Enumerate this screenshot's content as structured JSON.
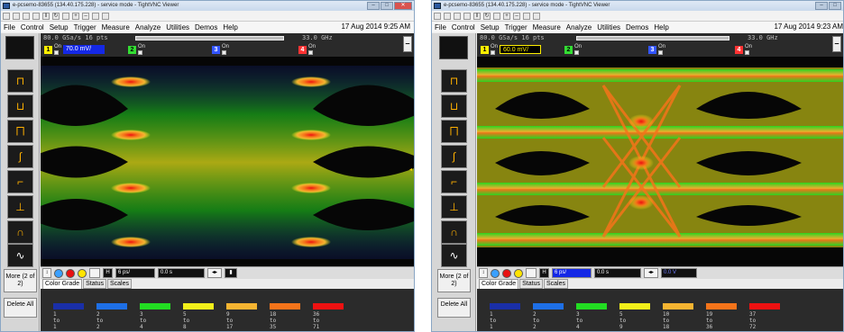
{
  "left": {
    "title_bar": "e-pcsemo-83655 (134.40.175.228) - service mode - TightVNC Viewer",
    "menu": [
      "File",
      "Control",
      "Setup",
      "Trigger",
      "Measure",
      "Analyze",
      "Utilities",
      "Demos",
      "Help"
    ],
    "date": "17 Aug 2014 9:25 AM",
    "sample_rate": "80.0 GSa/s   16 pts",
    "frequency": "33.0 GHz",
    "ch1": {
      "num": "1",
      "on": "On",
      "scale": "70.0 mV/"
    },
    "ch2": {
      "num": "2",
      "on": "On"
    },
    "ch3": {
      "num": "3",
      "on": "On"
    },
    "ch4": {
      "num": "4",
      "on": "On"
    },
    "more": "More (2 of 2)",
    "delete": "Delete All",
    "timebase": "6 ps/",
    "delay": "0.0 s",
    "tabs": [
      "Color Grade",
      "Status",
      "Scales"
    ],
    "legend": [
      {
        "top": "1",
        "bottom": "1",
        "color": "#1a2fa8"
      },
      {
        "top": "2",
        "bottom": "2",
        "color": "#1e6fe6"
      },
      {
        "top": "3",
        "bottom": "4",
        "color": "#22dd22"
      },
      {
        "top": "5",
        "bottom": "8",
        "color": "#f2ef1a"
      },
      {
        "top": "9",
        "bottom": "17",
        "color": "#f5b431"
      },
      {
        "top": "18",
        "bottom": "35",
        "color": "#f5741a"
      },
      {
        "top": "36",
        "bottom": "71",
        "color": "#ee1111"
      }
    ]
  },
  "right": {
    "title_bar": "e-pcsemo-83655 (134.40.175.228) - service mode - TightVNC Viewer",
    "menu": [
      "File",
      "Control",
      "Setup",
      "Trigger",
      "Measure",
      "Analyze",
      "Utilities",
      "Demos",
      "Help"
    ],
    "date": "17 Aug 2014 9:23 AM",
    "sample_rate": "80.0 GSa/s   16 pts",
    "frequency": "33.0 GHz",
    "ch1": {
      "num": "1",
      "on": "On",
      "scale": "60.0 mV/"
    },
    "ch2": {
      "num": "2",
      "on": "On"
    },
    "ch3": {
      "num": "3",
      "on": "On"
    },
    "ch4": {
      "num": "4",
      "on": "On"
    },
    "more": "More (2 of 2)",
    "delete": "Delete All",
    "timebase": "6 ps/",
    "delay": "0.0 s",
    "trigger_level": "0.0 V",
    "tabs": [
      "Color Grade",
      "Status",
      "Scales"
    ],
    "legend": [
      {
        "top": "1",
        "bottom": "1",
        "color": "#1a2fa8"
      },
      {
        "top": "2",
        "bottom": "2",
        "color": "#1e6fe6"
      },
      {
        "top": "3",
        "bottom": "4",
        "color": "#22dd22"
      },
      {
        "top": "5",
        "bottom": "9",
        "color": "#f2ef1a"
      },
      {
        "top": "10",
        "bottom": "18",
        "color": "#f5b431"
      },
      {
        "top": "19",
        "bottom": "36",
        "color": "#f5741a"
      },
      {
        "top": "37",
        "bottom": "72",
        "color": "#ee1111"
      }
    ]
  },
  "legend_to": "to",
  "colors": {
    "ch1": "#ffef00",
    "ch2": "#33dd33",
    "ch3": "#3355ff",
    "ch4": "#ff3333"
  }
}
